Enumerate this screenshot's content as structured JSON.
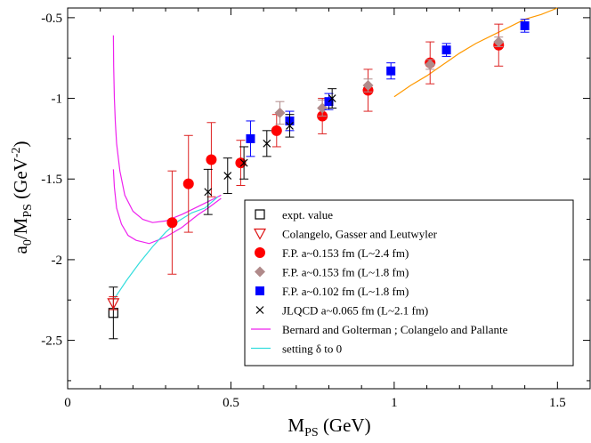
{
  "chart_data": {
    "type": "scatter",
    "xlabel": "M",
    "xlabel_sub": "PS",
    "xlabel_unit": " (GeV)",
    "ylabel": "a",
    "ylabel_sub": "0",
    "ylabel_mid": "/M",
    "ylabel_sub2": "PS",
    "ylabel_unit": " (GeV",
    "ylabel_sup": "-2",
    "ylabel_close": ")",
    "xlim": [
      0,
      1.6
    ],
    "ylim": [
      -2.8,
      -0.44
    ],
    "x_ticks": [
      {
        "value": 0,
        "label": "0"
      },
      {
        "value": 0.5,
        "label": "0.5"
      },
      {
        "value": 1.0,
        "label": "1"
      },
      {
        "value": 1.5,
        "label": "1.5"
      }
    ],
    "y_ticks": [
      {
        "value": -2.5,
        "label": "-2.5"
      },
      {
        "value": -2.0,
        "label": "-2"
      },
      {
        "value": -1.5,
        "label": "-1.5"
      },
      {
        "value": -1.0,
        "label": "-1"
      },
      {
        "value": -0.5,
        "label": "-0.5"
      }
    ],
    "grid": false,
    "legend_position": "bottom-right",
    "series": [
      {
        "name": "expt. value",
        "marker": "open-square",
        "color": "#000000",
        "points": [
          {
            "x": 0.14,
            "y": -2.33,
            "err": 0.16
          }
        ]
      },
      {
        "name": "Colangelo, Gasser and Leutwyler",
        "marker": "open-triangle-down",
        "color": "#dd1111",
        "points": [
          {
            "x": 0.14,
            "y": -2.27,
            "err": 0.04
          }
        ]
      },
      {
        "name": "F.P. a~0.153 fm (L~2.4 fm)",
        "marker": "filled-circle",
        "color": "#ff0000",
        "error_color": "#dd2222",
        "points": [
          {
            "x": 0.32,
            "y": -1.77,
            "err": 0.32
          },
          {
            "x": 0.37,
            "y": -1.53,
            "err": 0.3
          },
          {
            "x": 0.44,
            "y": -1.38,
            "err": 0.23
          },
          {
            "x": 0.53,
            "y": -1.4,
            "err": 0.14
          },
          {
            "x": 0.64,
            "y": -1.2,
            "err": 0.1
          },
          {
            "x": 0.78,
            "y": -1.11,
            "err": 0.11
          },
          {
            "x": 0.92,
            "y": -0.95,
            "err": 0.13
          },
          {
            "x": 1.11,
            "y": -0.78,
            "err": 0.13
          },
          {
            "x": 1.32,
            "y": -0.67,
            "err": 0.13
          }
        ]
      },
      {
        "name": "F.P. a~0.153 fm (L~1.8 fm)",
        "marker": "filled-diamond",
        "color": "#b08a8a",
        "error_color": "#b08a8a",
        "points": [
          {
            "x": 0.65,
            "y": -1.09,
            "err": 0.07
          },
          {
            "x": 0.78,
            "y": -1.06,
            "err": 0.05
          },
          {
            "x": 0.92,
            "y": -0.92,
            "err": 0.04
          },
          {
            "x": 1.11,
            "y": -0.79,
            "err": 0.03
          },
          {
            "x": 1.32,
            "y": -0.65,
            "err": 0.03
          }
        ]
      },
      {
        "name": "F.P. a~0.102 fm (L~1.8 fm)",
        "marker": "filled-square",
        "color": "#0000ff",
        "error_color": "#0000ff",
        "points": [
          {
            "x": 0.56,
            "y": -1.25,
            "err": 0.11
          },
          {
            "x": 0.68,
            "y": -1.14,
            "err": 0.06
          },
          {
            "x": 0.8,
            "y": -1.02,
            "err": 0.05
          },
          {
            "x": 0.99,
            "y": -0.83,
            "err": 0.05
          },
          {
            "x": 1.16,
            "y": -0.7,
            "err": 0.04
          },
          {
            "x": 1.4,
            "y": -0.55,
            "err": 0.04
          }
        ]
      },
      {
        "name": "JLQCD a~0.065 fm (L~2.1 fm)",
        "marker": "cross",
        "color": "#000000",
        "error_color": "#000000",
        "points": [
          {
            "x": 0.43,
            "y": -1.58,
            "err": 0.14
          },
          {
            "x": 0.49,
            "y": -1.48,
            "err": 0.11
          },
          {
            "x": 0.54,
            "y": -1.4,
            "err": 0.1
          },
          {
            "x": 0.61,
            "y": -1.28,
            "err": 0.08
          },
          {
            "x": 0.68,
            "y": -1.17,
            "err": 0.07
          },
          {
            "x": 0.81,
            "y": -1.0,
            "err": 0.06
          }
        ]
      },
      {
        "name": "Bernard and Golterman ; Colangelo and Pallante",
        "marker": "line",
        "color": "#ee22ee",
        "curves": [
          [
            [
              0.14,
              -0.61
            ],
            [
              0.141,
              -0.8
            ],
            [
              0.143,
              -1.0
            ],
            [
              0.146,
              -1.15
            ],
            [
              0.15,
              -1.28
            ],
            [
              0.16,
              -1.45
            ],
            [
              0.175,
              -1.6
            ],
            [
              0.2,
              -1.7
            ],
            [
              0.23,
              -1.75
            ],
            [
              0.26,
              -1.77
            ],
            [
              0.3,
              -1.76
            ],
            [
              0.35,
              -1.72
            ],
            [
              0.4,
              -1.67
            ],
            [
              0.45,
              -1.62
            ],
            [
              0.47,
              -1.6
            ]
          ],
          [
            [
              0.14,
              -1.44
            ],
            [
              0.143,
              -1.55
            ],
            [
              0.15,
              -1.68
            ],
            [
              0.165,
              -1.78
            ],
            [
              0.185,
              -1.85
            ],
            [
              0.21,
              -1.88
            ],
            [
              0.25,
              -1.9
            ],
            [
              0.3,
              -1.86
            ],
            [
              0.35,
              -1.8
            ],
            [
              0.4,
              -1.72
            ],
            [
              0.43,
              -1.68
            ],
            [
              0.47,
              -1.62
            ]
          ]
        ]
      },
      {
        "name": "setting δ to 0",
        "marker": "line",
        "color": "#33dddd",
        "curves": [
          [
            [
              0.14,
              -2.25
            ],
            [
              0.18,
              -2.13
            ],
            [
              0.22,
              -2.02
            ],
            [
              0.26,
              -1.92
            ],
            [
              0.3,
              -1.83
            ],
            [
              0.34,
              -1.76
            ],
            [
              0.38,
              -1.71
            ],
            [
              0.42,
              -1.68
            ],
            [
              0.46,
              -1.61
            ]
          ]
        ]
      },
      {
        "name": "",
        "marker": "line",
        "color": "#ff9900",
        "legend": false,
        "curves": [
          [
            [
              1.0,
              -0.99
            ],
            [
              1.05,
              -0.92
            ],
            [
              1.1,
              -0.86
            ],
            [
              1.15,
              -0.79
            ],
            [
              1.2,
              -0.72
            ],
            [
              1.25,
              -0.66
            ],
            [
              1.3,
              -0.61
            ],
            [
              1.35,
              -0.56
            ],
            [
              1.4,
              -0.51
            ],
            [
              1.45,
              -0.48
            ],
            [
              1.5,
              -0.44
            ]
          ]
        ]
      }
    ]
  }
}
